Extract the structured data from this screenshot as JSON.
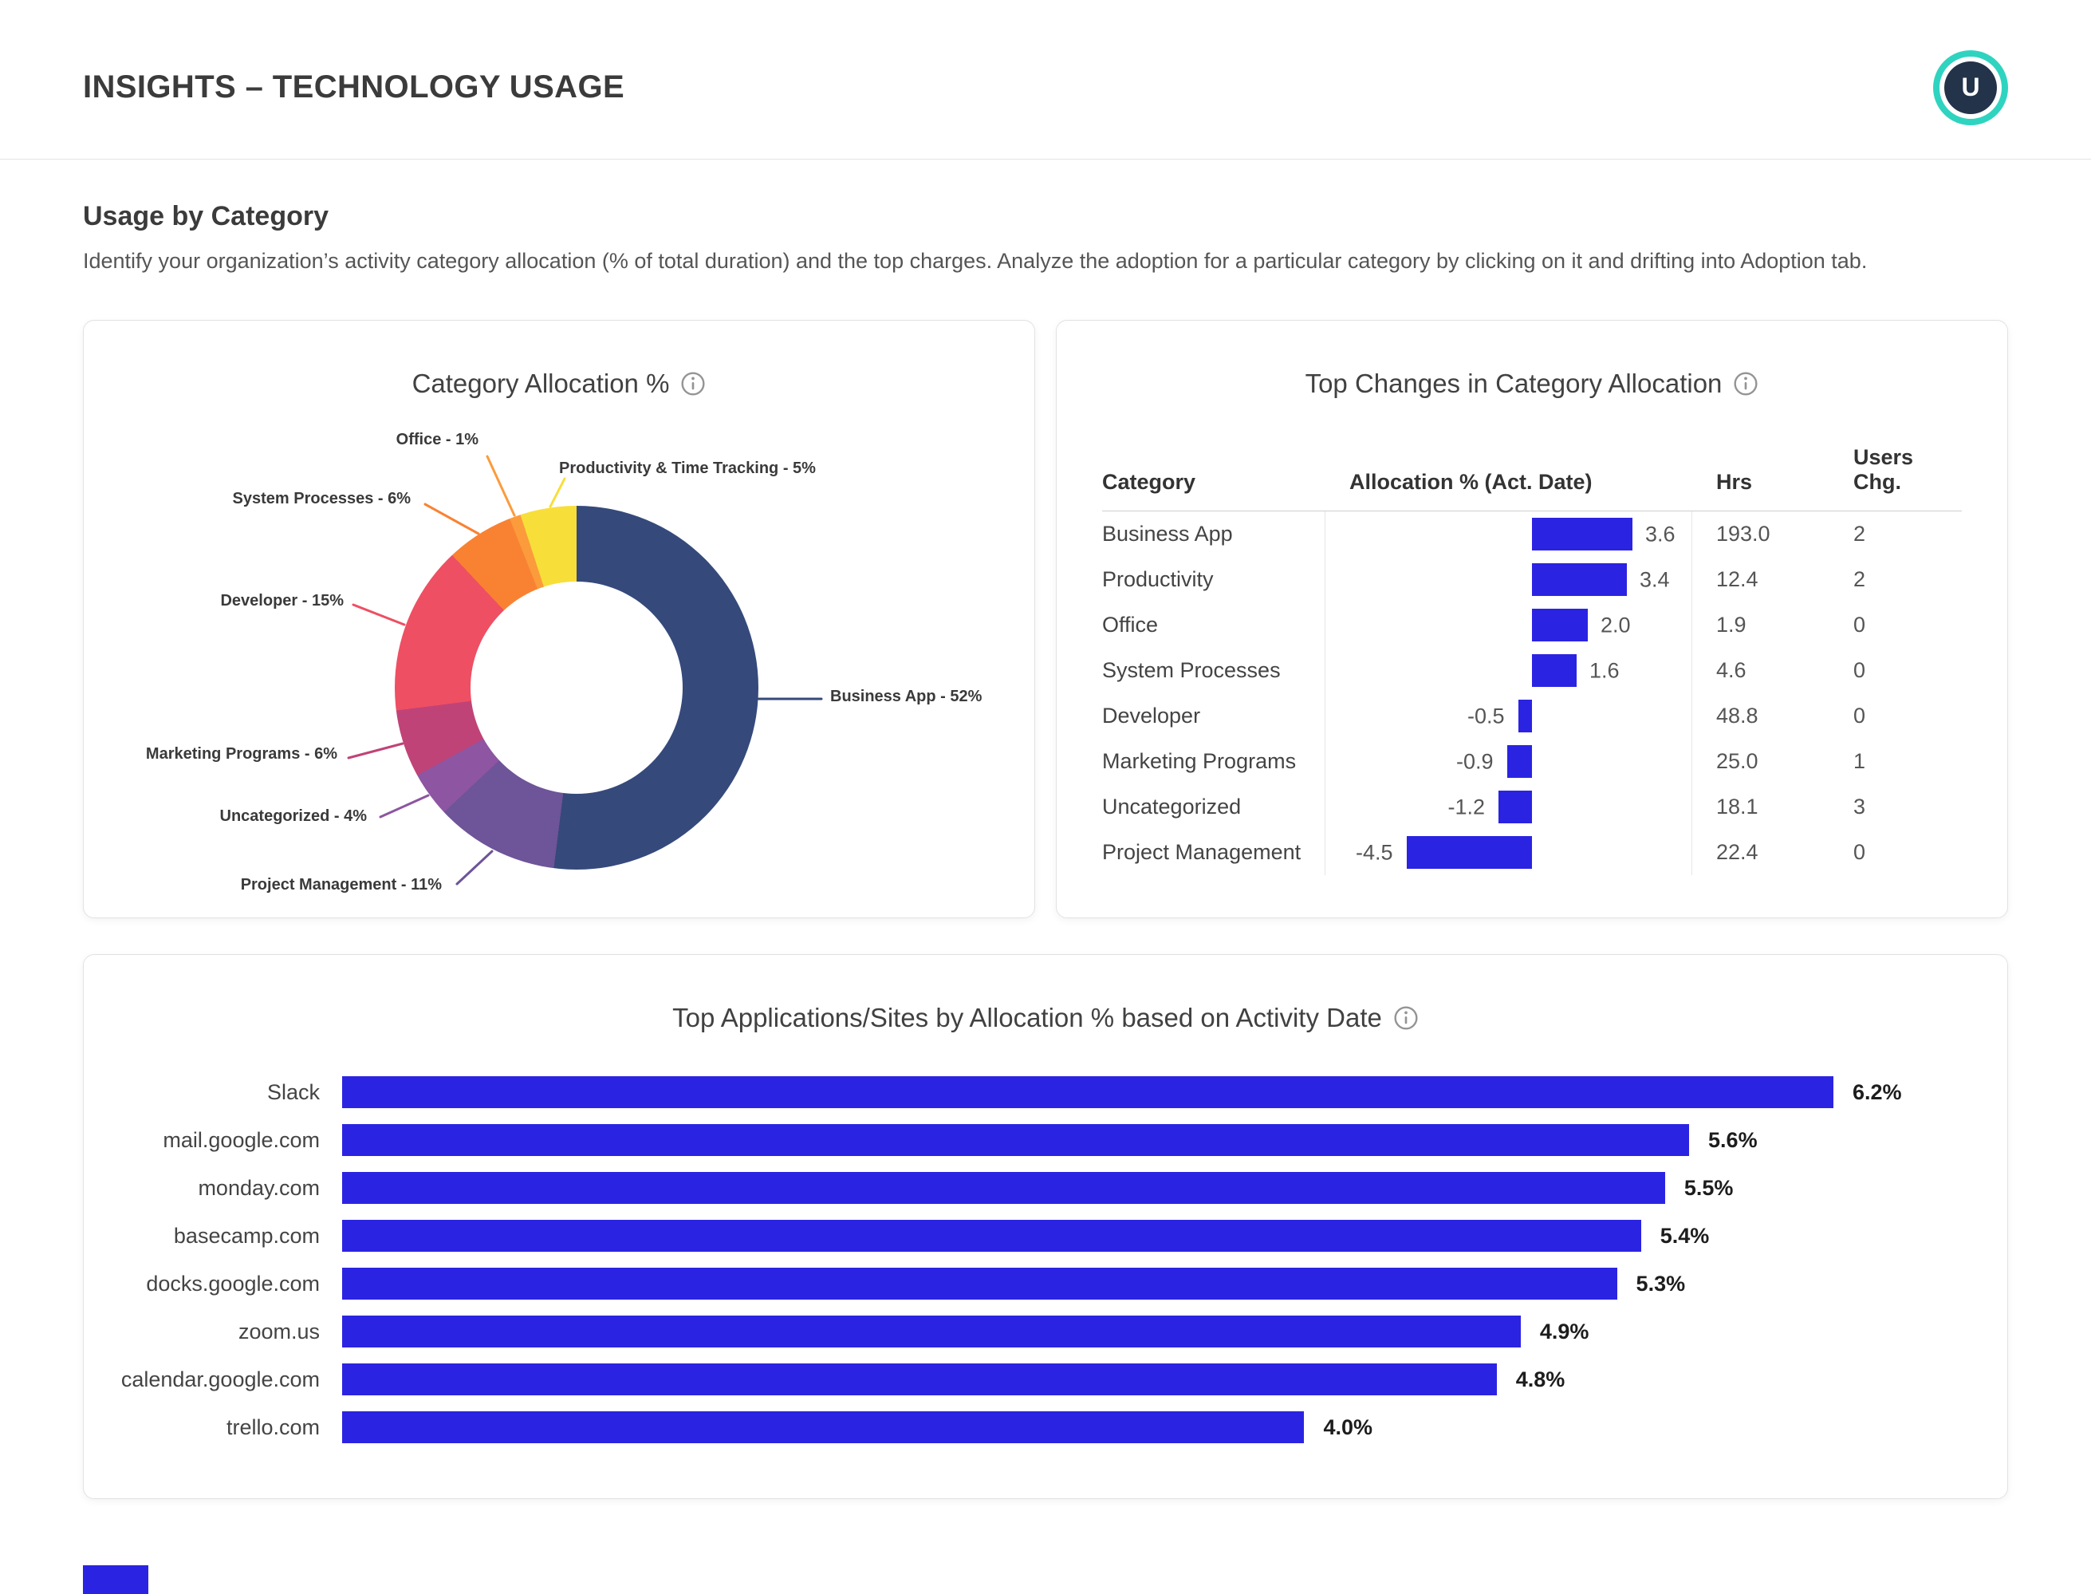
{
  "header": {
    "title": "INSIGHTS – TECHNOLOGY USAGE",
    "avatar_initial": "U"
  },
  "section": {
    "title": "Usage by Category",
    "description": "Identify your organization’s activity category allocation (% of total duration) and the top charges. Analyze the adoption for a particular category by clicking on it and drifting into Adoption tab."
  },
  "colors": {
    "accent_blue": "#2b23e2",
    "avatar_ring": "#2fd4c0",
    "avatar_bg": "#233349"
  },
  "chart_data": [
    {
      "type": "pie",
      "variant": "donut",
      "title": "Category Allocation %",
      "legend_position": "callout-labels",
      "segments": [
        {
          "label": "Business App",
          "value": 52,
          "color": "#35497b"
        },
        {
          "label": "Project Management",
          "value": 11,
          "color": "#6e5499"
        },
        {
          "label": "Uncategorized",
          "value": 4,
          "color": "#8d55a2"
        },
        {
          "label": "Marketing Programs",
          "value": 6,
          "color": "#c04377"
        },
        {
          "label": "Developer",
          "value": 15,
          "color": "#ee4f63"
        },
        {
          "label": "System Processes",
          "value": 6,
          "color": "#f98232"
        },
        {
          "label": "Office",
          "value": 1,
          "color": "#fb9b3c"
        },
        {
          "label": "Productivity & Time Tracking",
          "value": 5,
          "color": "#f8de39"
        }
      ]
    },
    {
      "type": "table",
      "title": "Top Changes in Category Allocation",
      "columns": [
        "Category",
        "Allocation % (Act. Date)",
        "Hrs",
        "Users Chg."
      ],
      "bar_color": "#2b23e2",
      "rows": [
        {
          "category": "Business App",
          "change": 3.6,
          "change_label": "3.6",
          "hrs": "193.0",
          "users_chg": "2"
        },
        {
          "category": "Productivity",
          "change": 3.4,
          "change_label": "3.4",
          "hrs": "12.4",
          "users_chg": "2"
        },
        {
          "category": "Office",
          "change": 2.0,
          "change_label": "2.0",
          "hrs": "1.9",
          "users_chg": "0"
        },
        {
          "category": "System Processes",
          "change": 1.6,
          "change_label": "1.6",
          "hrs": "4.6",
          "users_chg": "0"
        },
        {
          "category": "Developer",
          "change": -0.5,
          "change_label": "-0.5",
          "hrs": "48.8",
          "users_chg": "0"
        },
        {
          "category": "Marketing Programs",
          "change": -0.9,
          "change_label": "-0.9",
          "hrs": "25.0",
          "users_chg": "1"
        },
        {
          "category": "Uncategorized",
          "change": -1.2,
          "change_label": "-1.2",
          "hrs": "18.1",
          "users_chg": "3"
        },
        {
          "category": "Project Management",
          "change": -4.5,
          "change_label": "-4.5",
          "hrs": "22.4",
          "users_chg": "0"
        }
      ]
    },
    {
      "type": "bar",
      "title": "Top Applications/Sites by Allocation % based on Activity Date",
      "orientation": "horizontal",
      "bar_color": "#2b23e2",
      "xlim": [
        0,
        6.2
      ],
      "categories": [
        "Slack",
        "mail.google.com",
        "monday.com",
        "basecamp.com",
        "docks.google.com",
        "zoom.us",
        "calendar.google.com",
        "trello.com"
      ],
      "values": [
        6.2,
        5.6,
        5.5,
        5.4,
        5.3,
        4.9,
        4.8,
        4.0
      ],
      "value_labels": [
        "6.2%",
        "5.6%",
        "5.5%",
        "5.4%",
        "5.3%",
        "4.9%",
        "4.8%",
        "4.0%"
      ]
    }
  ]
}
